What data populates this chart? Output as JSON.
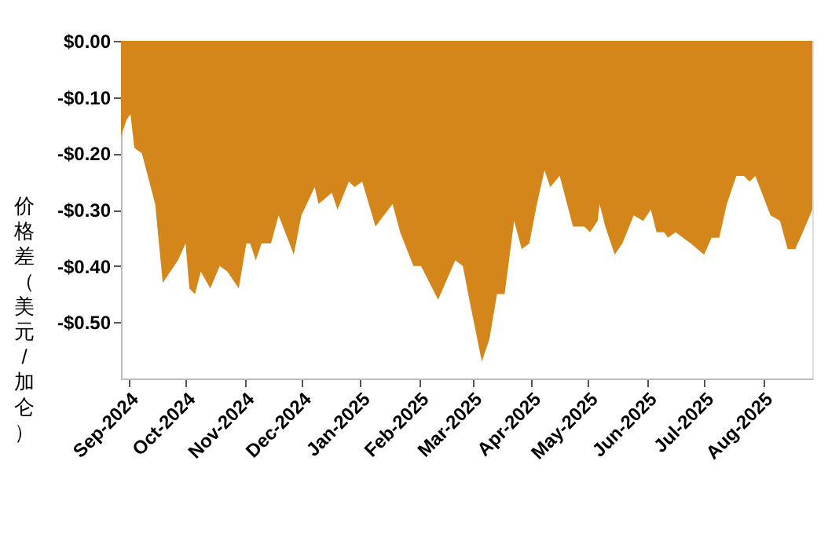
{
  "chart_data": {
    "type": "area",
    "ylabel": "价格差（美元/加仑）",
    "color": "#d4861a",
    "x": [
      "2024-08-28",
      "2024-08-31",
      "2024-09-02",
      "2024-09-04",
      "2024-09-08",
      "2024-09-15",
      "2024-09-19",
      "2024-09-23",
      "2024-09-27",
      "2024-10-01",
      "2024-10-03",
      "2024-10-06",
      "2024-10-09",
      "2024-10-14",
      "2024-10-19",
      "2024-10-23",
      "2024-10-29",
      "2024-11-02",
      "2024-11-04",
      "2024-11-07",
      "2024-11-10",
      "2024-11-15",
      "2024-11-19",
      "2024-11-27",
      "2024-12-01",
      "2024-12-08",
      "2024-12-10",
      "2024-12-17",
      "2024-12-20",
      "2024-12-26",
      "2024-12-29",
      "2025-01-02",
      "2025-01-09",
      "2025-01-18",
      "2025-01-22",
      "2025-01-29",
      "2025-02-02",
      "2025-02-11",
      "2025-02-20",
      "2025-02-24",
      "2025-02-28",
      "2025-03-06",
      "2025-03-10",
      "2025-03-14",
      "2025-03-18",
      "2025-03-23",
      "2025-03-27",
      "2025-03-31",
      "2025-04-04",
      "2025-04-08",
      "2025-04-11",
      "2025-04-16",
      "2025-04-23",
      "2025-04-29",
      "2025-05-02",
      "2025-05-06",
      "2025-05-07",
      "2025-05-10",
      "2025-05-15",
      "2025-05-19",
      "2025-05-25",
      "2025-05-30",
      "2025-06-03",
      "2025-06-06",
      "2025-06-10",
      "2025-06-12",
      "2025-06-16",
      "2025-06-24",
      "2025-07-01",
      "2025-07-05",
      "2025-07-09",
      "2025-07-13",
      "2025-07-18",
      "2025-07-22",
      "2025-07-25",
      "2025-07-28",
      "2025-08-05",
      "2025-08-10",
      "2025-08-14",
      "2025-08-18",
      "2025-08-22",
      "2025-08-27"
    ],
    "values": [
      -0.17,
      -0.14,
      -0.13,
      -0.19,
      -0.2,
      -0.29,
      -0.43,
      -0.41,
      -0.39,
      -0.36,
      -0.44,
      -0.45,
      -0.41,
      -0.44,
      -0.4,
      -0.41,
      -0.44,
      -0.36,
      -0.36,
      -0.39,
      -0.36,
      -0.36,
      -0.31,
      -0.38,
      -0.31,
      -0.26,
      -0.29,
      -0.27,
      -0.3,
      -0.25,
      -0.26,
      -0.25,
      -0.33,
      -0.29,
      -0.34,
      -0.4,
      -0.4,
      -0.46,
      -0.39,
      -0.4,
      -0.47,
      -0.57,
      -0.53,
      -0.45,
      -0.45,
      -0.32,
      -0.37,
      -0.36,
      -0.29,
      -0.23,
      -0.26,
      -0.24,
      -0.33,
      -0.33,
      -0.34,
      -0.32,
      -0.29,
      -0.33,
      -0.38,
      -0.36,
      -0.31,
      -0.32,
      -0.3,
      -0.34,
      -0.34,
      -0.35,
      -0.34,
      -0.36,
      -0.38,
      -0.35,
      -0.35,
      -0.29,
      -0.24,
      -0.24,
      -0.25,
      -0.24,
      -0.31,
      -0.32,
      -0.37,
      -0.37,
      -0.34,
      -0.3
    ],
    "xlim": [
      "2024-08-28",
      "2025-08-27"
    ],
    "xticks": [
      {
        "value": "2024-09-01",
        "label": "Sep-2024"
      },
      {
        "value": "2024-10-01",
        "label": "Oct-2024"
      },
      {
        "value": "2024-11-01",
        "label": "Nov-2024"
      },
      {
        "value": "2024-12-01",
        "label": "Dec-2024"
      },
      {
        "value": "2025-01-01",
        "label": "Jan-2025"
      },
      {
        "value": "2025-02-01",
        "label": "Feb-2025"
      },
      {
        "value": "2025-03-01",
        "label": "Mar-2025"
      },
      {
        "value": "2025-04-01",
        "label": "Apr-2025"
      },
      {
        "value": "2025-05-01",
        "label": "May-2025"
      },
      {
        "value": "2025-06-01",
        "label": "Jun-2025"
      },
      {
        "value": "2025-07-01",
        "label": "Jul-2025"
      },
      {
        "value": "2025-08-01",
        "label": "Aug-2025"
      }
    ],
    "ylim": [
      -0.6,
      0
    ],
    "yticks": [
      {
        "value": 0,
        "label": "$0.00"
      },
      {
        "value": -0.1,
        "label": "-$0.10"
      },
      {
        "value": -0.2,
        "label": "-$0.20"
      },
      {
        "value": -0.3,
        "label": "-$0.30"
      },
      {
        "value": -0.4,
        "label": "-$0.40"
      },
      {
        "value": -0.5,
        "label": "-$0.50"
      }
    ],
    "grid": false
  }
}
